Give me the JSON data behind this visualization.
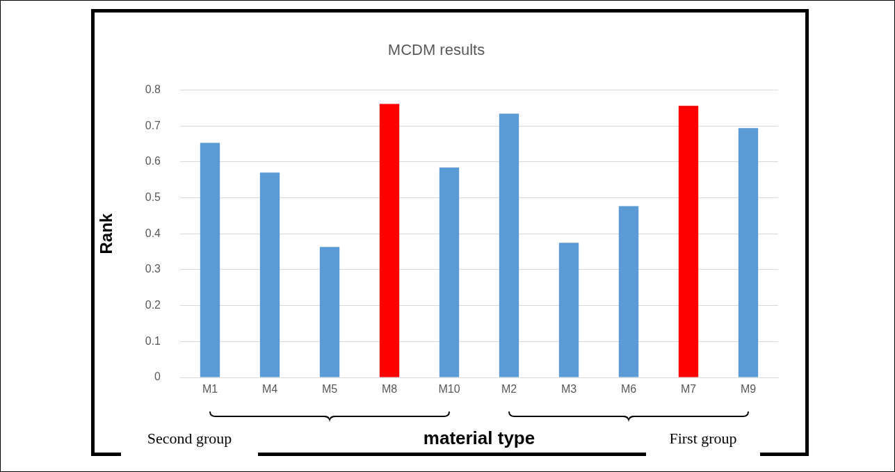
{
  "chart_data": {
    "type": "bar",
    "title": "MCDM results",
    "xlabel": "material type",
    "ylabel": "Rank",
    "categories": [
      "M1",
      "M4",
      "M5",
      "M8",
      "M10",
      "M2",
      "M3",
      "M6",
      "M7",
      "M9"
    ],
    "values": [
      0.653,
      0.57,
      0.363,
      0.761,
      0.584,
      0.734,
      0.375,
      0.477,
      0.756,
      0.694
    ],
    "colors": [
      "#5b9bd5",
      "#5b9bd5",
      "#5b9bd5",
      "#ff0000",
      "#5b9bd5",
      "#5b9bd5",
      "#5b9bd5",
      "#5b9bd5",
      "#ff0000",
      "#5b9bd5"
    ],
    "ylim": [
      0,
      0.8
    ],
    "yticks": [
      0,
      0.1,
      0.2,
      0.3,
      0.4,
      0.5,
      0.6,
      0.7,
      0.8
    ],
    "grid": "y",
    "legend": false,
    "annotations": [
      "Second group",
      "First group"
    ]
  }
}
